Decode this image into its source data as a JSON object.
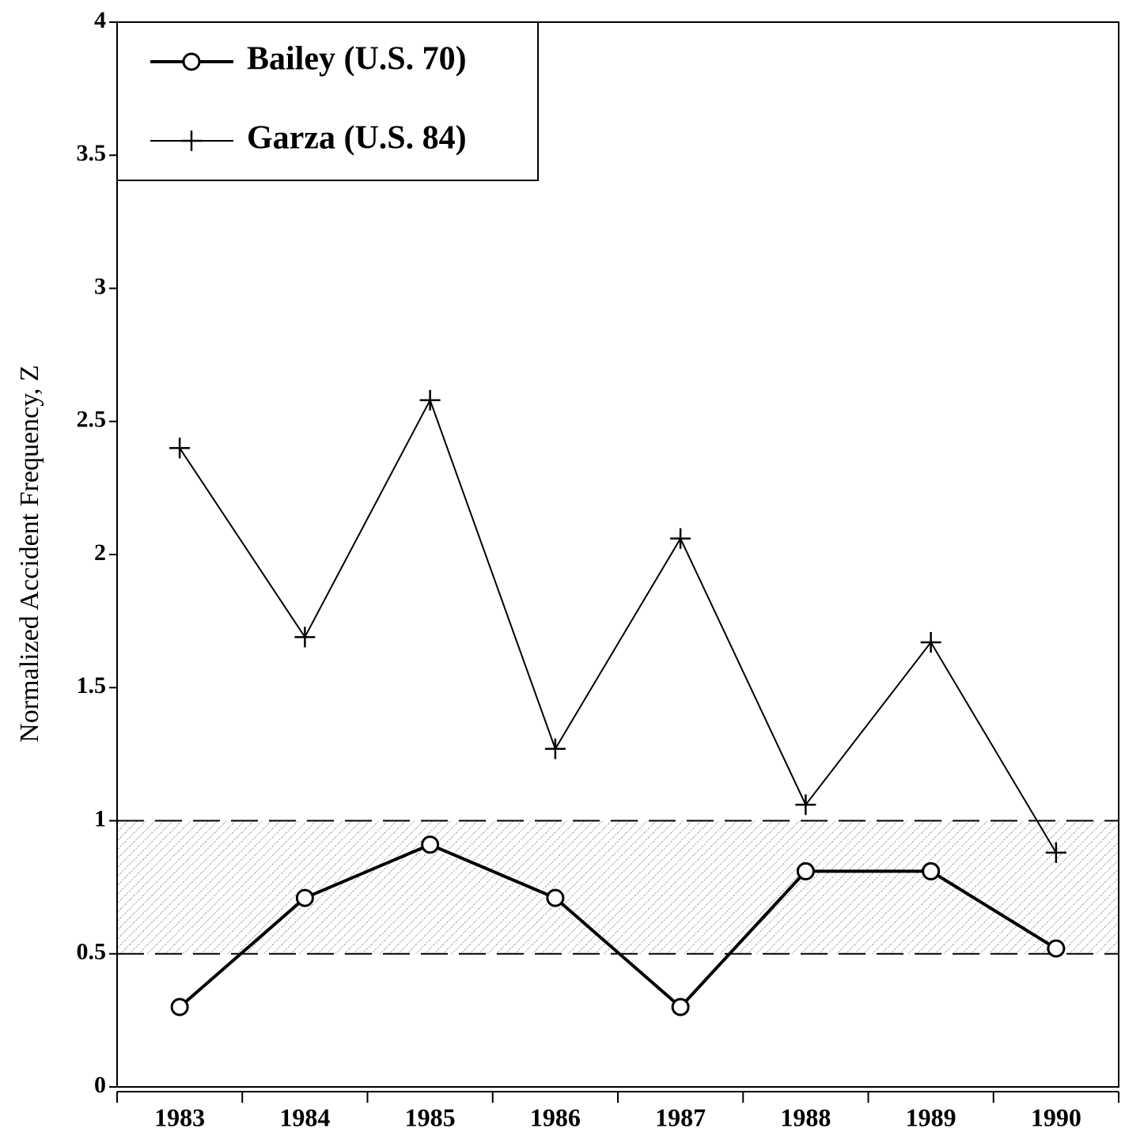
{
  "chart_data": {
    "type": "line",
    "ylabel": "Normalized Accident Frequency, Z",
    "categories": [
      "1983",
      "1984",
      "1985",
      "1986",
      "1987",
      "1988",
      "1989",
      "1990"
    ],
    "series": [
      {
        "name": "Bailey (U.S. 70)",
        "color": "#000000",
        "marker": "circle",
        "values": [
          0.3,
          0.71,
          0.91,
          0.71,
          0.3,
          0.81,
          0.81,
          0.52
        ]
      },
      {
        "name": "Garza (U.S. 84)",
        "color": "#000000",
        "marker": "plus",
        "values": [
          2.4,
          1.69,
          2.58,
          1.27,
          2.06,
          1.06,
          1.67,
          0.88
        ]
      }
    ],
    "band": [
      0.5,
      1
    ],
    "ylim": [
      0,
      4
    ],
    "yticks": [
      0,
      0.5,
      1,
      1.5,
      2,
      2.5,
      3,
      3.5,
      4
    ],
    "legend": "upper left"
  }
}
